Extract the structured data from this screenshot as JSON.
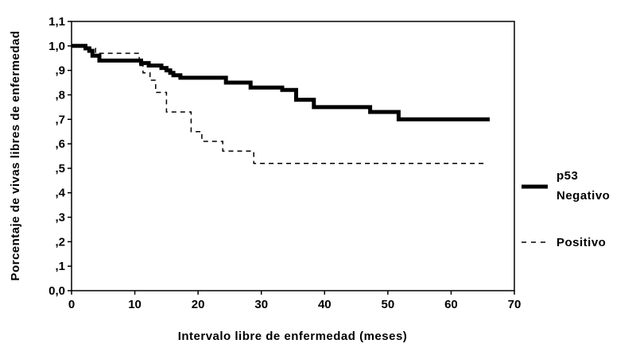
{
  "chart_data": {
    "type": "line",
    "title": "",
    "xlabel": "Intervalo libre de enfermedad (meses)",
    "ylabel": "Porcentaje de vivas libres de enfermedad",
    "xlim": [
      0,
      70
    ],
    "ylim": [
      0,
      1.1
    ],
    "x_ticks": [
      0,
      10,
      20,
      30,
      40,
      50,
      60,
      70
    ],
    "x_tick_labels": [
      "0",
      "10",
      "20",
      "30",
      "40",
      "50",
      "60",
      "70"
    ],
    "y_ticks": [
      0,
      0.1,
      0.2,
      0.3,
      0.4,
      0.5,
      0.6,
      0.7,
      0.8,
      0.9,
      1.0,
      1.1
    ],
    "y_tick_labels": [
      "0,0",
      ",1",
      ",2",
      ",3",
      ",4",
      ",5",
      ",6",
      ",7",
      ",8",
      ",9",
      "1,0",
      "1,1"
    ],
    "grid": false,
    "legend_position": "right",
    "legend_title": "p53",
    "series": [
      {
        "name": "Negativo",
        "style": "solid",
        "color": "#000000",
        "x": [
          0,
          2.2,
          2.8,
          3.3,
          4.4,
          11.0,
          12.2,
          14.2,
          15.0,
          15.6,
          16.1,
          16.7,
          17.2,
          24.4,
          28.3,
          33.3,
          35.5,
          36.1,
          38.3,
          47.2,
          51.7,
          66.1
        ],
        "y": [
          1.0,
          0.99,
          0.98,
          0.96,
          0.94,
          0.93,
          0.92,
          0.91,
          0.9,
          0.89,
          0.88,
          0.88,
          0.87,
          0.85,
          0.83,
          0.82,
          0.78,
          0.78,
          0.75,
          0.73,
          0.7,
          0.7
        ]
      },
      {
        "name": "Positivo",
        "style": "dashed",
        "color": "#000000",
        "x": [
          0,
          2.2,
          3.8,
          10.7,
          11.3,
          12.4,
          13.3,
          15.0,
          18.2,
          18.9,
          20.6,
          23.9,
          28.8,
          65.5
        ],
        "y": [
          1.0,
          0.99,
          0.97,
          0.92,
          0.89,
          0.86,
          0.81,
          0.73,
          0.73,
          0.65,
          0.61,
          0.57,
          0.52,
          0.52
        ]
      }
    ]
  }
}
